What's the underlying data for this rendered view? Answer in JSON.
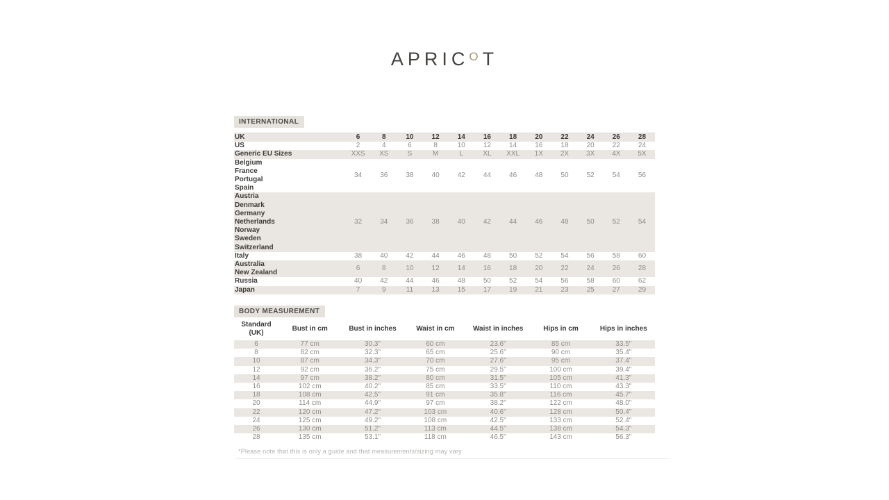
{
  "logo": {
    "prefix": "APRIC",
    "o_letter": "O",
    "suffix": "T",
    "o_color": "#a79476",
    "text_color": "#45423f"
  },
  "colors": {
    "row_shade": "#eae6e1",
    "label_box": "#e5e2dc",
    "value_text": "#8f8c88",
    "label_text": "#3c3a38"
  },
  "international": {
    "section_label": "INTERNATIONAL",
    "rows": [
      {
        "labels": [
          "UK"
        ],
        "shaded": true,
        "bold_values": true,
        "values": [
          "6",
          "8",
          "10",
          "12",
          "14",
          "16",
          "18",
          "20",
          "22",
          "24",
          "26",
          "28"
        ]
      },
      {
        "labels": [
          "US"
        ],
        "shaded": false,
        "bold_values": false,
        "values": [
          "2",
          "4",
          "6",
          "8",
          "10",
          "12",
          "14",
          "16",
          "18",
          "20",
          "22",
          "24"
        ]
      },
      {
        "labels": [
          "Generic EU Sizes"
        ],
        "shaded": true,
        "bold_values": false,
        "values": [
          "XXS",
          "XS",
          "S",
          "M",
          "L",
          "XL",
          "XXL",
          "1X",
          "2X",
          "3X",
          "4X",
          "5X"
        ]
      },
      {
        "labels": [
          "Belgium",
          "France",
          "Portugal",
          "Spain"
        ],
        "shaded": false,
        "bold_values": false,
        "values": [
          "34",
          "36",
          "38",
          "40",
          "42",
          "44",
          "46",
          "48",
          "50",
          "52",
          "54",
          "56"
        ]
      },
      {
        "labels": [
          "Austria",
          "Denmark",
          "Germany",
          "Netherlands",
          "Norway",
          "Sweden",
          "Switzerland"
        ],
        "shaded": true,
        "bold_values": false,
        "values": [
          "32",
          "34",
          "36",
          "38",
          "40",
          "42",
          "44",
          "46",
          "48",
          "50",
          "52",
          "54"
        ]
      },
      {
        "labels": [
          "Italy"
        ],
        "shaded": false,
        "bold_values": false,
        "values": [
          "38",
          "40",
          "42",
          "44",
          "46",
          "48",
          "50",
          "52",
          "54",
          "56",
          "58",
          "60"
        ]
      },
      {
        "labels": [
          "Australia",
          "New Zealand"
        ],
        "shaded": true,
        "bold_values": false,
        "values": [
          "6",
          "8",
          "10",
          "12",
          "14",
          "16",
          "18",
          "20",
          "22",
          "24",
          "26",
          "28"
        ]
      },
      {
        "labels": [
          "Russia"
        ],
        "shaded": false,
        "bold_values": false,
        "values": [
          "40",
          "42",
          "44",
          "46",
          "48",
          "50",
          "52",
          "54",
          "56",
          "58",
          "60",
          "62"
        ]
      },
      {
        "labels": [
          "Japan"
        ],
        "shaded": true,
        "bold_values": false,
        "values": [
          "7",
          "9",
          "11",
          "13",
          "15",
          "17",
          "19",
          "21",
          "23",
          "25",
          "27",
          "29"
        ]
      }
    ]
  },
  "body_measurement": {
    "section_label": "BODY MEASUREMENT",
    "headers": [
      [
        "Standard",
        "(UK)"
      ],
      [
        "Bust in cm"
      ],
      [
        "Bust in inches"
      ],
      [
        "Waist in cm"
      ],
      [
        "Waist in inches"
      ],
      [
        "Hips in cm"
      ],
      [
        "Hips in inches"
      ]
    ],
    "rows": [
      [
        "6",
        "77 cm",
        "30.3\"",
        "60 cm",
        "23.6\"",
        "85 cm",
        "33.5\""
      ],
      [
        "8",
        "82 cm",
        "32.3\"",
        "65 cm",
        "25.6\"",
        "90 cm",
        "35.4\""
      ],
      [
        "10",
        "87 cm",
        "34.3\"",
        "70 cm",
        "27.6\"",
        "95 cm",
        "37.4\""
      ],
      [
        "12",
        "92 cm",
        "36.2\"",
        "75 cm",
        "29.5\"",
        "100 cm",
        "39.4\""
      ],
      [
        "14",
        "97 cm",
        "38.2\"",
        "80 cm",
        "31.5\"",
        "105 cm",
        "41.3\""
      ],
      [
        "16",
        "102 cm",
        "40.2\"",
        "85 cm",
        "33.5\"",
        "110 cm",
        "43.3\""
      ],
      [
        "18",
        "108 cm",
        "42.5\"",
        "91 cm",
        "35.8\"",
        "116 cm",
        "45.7\""
      ],
      [
        "20",
        "114 cm",
        "44.9\"",
        "97 cm",
        "38.2\"",
        "122 cm",
        "48.0\""
      ],
      [
        "22",
        "120 cm",
        "47.2\"",
        "103 cm",
        "40.6\"",
        "128 cm",
        "50.4\""
      ],
      [
        "24",
        "125 cm",
        "49.2\"",
        "108 cm",
        "42.5\"",
        "133 cm",
        "52.4\""
      ],
      [
        "26",
        "130 cm",
        "51.2\"",
        "113 cm",
        "44.5\"",
        "138 cm",
        "54.3\""
      ],
      [
        "28",
        "135 cm",
        "53.1\"",
        "118 cm",
        "46.5\"",
        "143 cm",
        "56.3\""
      ]
    ]
  },
  "footnote": "*Please note that this is only a guide and that measurements/sizing may vary"
}
